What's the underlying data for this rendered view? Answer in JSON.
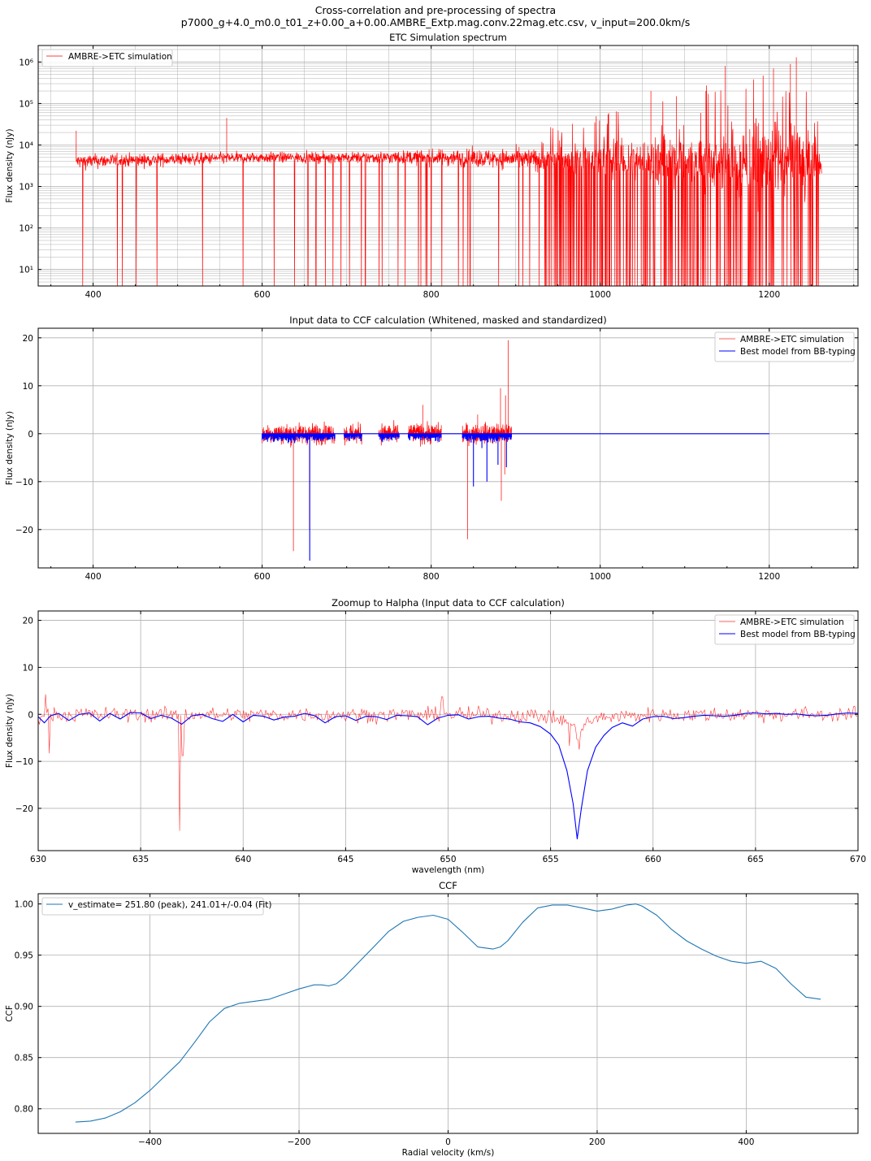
{
  "figure": {
    "title_line1": "Cross-correlation and pre-processing of spectra",
    "title_line2": "p7000_g+4.0_m0.0_t01_z+0.00_a+0.00.AMBRE_Extp.mag.conv.22mag.etc.csv, v_input=200.0km/s"
  },
  "colors": {
    "sim": "#ff0000",
    "model": "#0000ff",
    "ccf": "#1f77b4",
    "grid": "#b0b0b0"
  },
  "chart_data": [
    {
      "id": "p1",
      "type": "line",
      "title": "ETC Simulation spectrum",
      "xlabel": "",
      "ylabel": "Flux density (nJy)",
      "yscale": "log",
      "xlim": [
        335,
        1305
      ],
      "ylim": [
        4,
        2500000
      ],
      "xticks": [
        400,
        600,
        800,
        1000,
        1200
      ],
      "yticks": [
        10,
        100,
        1000,
        10000,
        100000,
        1000000
      ],
      "ytick_labels": [
        "10¹",
        "10²",
        "10³",
        "10⁴",
        "10⁵",
        "10⁶"
      ],
      "grid": "both-major-minor",
      "legend_position": "upper-left",
      "series": [
        {
          "name": "AMBRE->ETC simulation",
          "color": "#ff0000",
          "x_range": [
            380,
            1262
          ],
          "base_level": [
            [
              380,
              4000
            ],
            [
              600,
              5000
            ],
            [
              800,
              5000
            ],
            [
              930,
              4500
            ],
            [
              1100,
              4000
            ],
            [
              1262,
              3500
            ]
          ],
          "max_envelope": [
            [
              380,
              9000
            ],
            [
              700,
              9000
            ],
            [
              930,
              15000
            ],
            [
              1100,
              60000
            ],
            [
              1200,
              300000
            ],
            [
              1262,
              30000
            ]
          ],
          "dense_absorption_region": [
            930,
            1262
          ],
          "peaks": [
            [
              380,
              22000
            ],
            [
              558,
              45000
            ],
            [
              1148,
              800000
            ],
            [
              1232,
              1300000
            ],
            [
              1225,
              900000
            ],
            [
              1205,
              700000
            ],
            [
              1125,
              200000
            ],
            [
              1090,
              150000
            ],
            [
              1060,
              200000
            ]
          ]
        }
      ]
    },
    {
      "id": "p2",
      "type": "line",
      "title": "Input data to CCF calculation (Whitened, masked and standardized)",
      "xlabel": "",
      "ylabel": "Flux density (nJy)",
      "xlim": [
        335,
        1305
      ],
      "ylim": [
        -28,
        22
      ],
      "xticks": [
        400,
        600,
        800,
        1000,
        1200
      ],
      "yticks": [
        -20,
        -10,
        0,
        10,
        20
      ],
      "grid": "major",
      "legend_position": "upper-right",
      "segments": [
        [
          600,
          686
        ],
        [
          697,
          718
        ],
        [
          738,
          762
        ],
        [
          773,
          812
        ],
        [
          837,
          895
        ]
      ],
      "series": [
        {
          "name": "AMBRE->ETC simulation",
          "color": "#ff0000",
          "noise_amplitude": 1.5,
          "spikes": [
            [
              637,
              -24.5
            ],
            [
              656,
              -20
            ],
            [
              843,
              -22
            ],
            [
              883,
              -14
            ],
            [
              887,
              -8.5
            ],
            [
              888,
              8
            ],
            [
              882,
              9.5
            ],
            [
              855,
              4
            ],
            [
              790,
              6
            ],
            [
              891,
              19.5
            ]
          ]
        },
        {
          "name": "Best model from BB-typing",
          "color": "#0000ff",
          "x_extent": [
            600,
            1200
          ],
          "dips": [
            [
              656.3,
              -26.5
            ],
            [
              850,
              -11
            ],
            [
              866,
              -10
            ],
            [
              879,
              -6.5
            ],
            [
              889,
              -7
            ],
            [
              860,
              -3
            ]
          ]
        }
      ]
    },
    {
      "id": "p3",
      "type": "line",
      "title": "Zoomup to Halpha (Input data to CCF calculation)",
      "xlabel": "wavelength (nm)",
      "ylabel": "Flux density (nJy)",
      "xlim": [
        630,
        670
      ],
      "ylim": [
        -29,
        22
      ],
      "xticks": [
        630,
        635,
        640,
        645,
        650,
        655,
        660,
        665,
        670
      ],
      "yticks": [
        -20,
        -10,
        0,
        10,
        20
      ],
      "grid": "major",
      "legend_position": "upper-right",
      "series": [
        {
          "name": "AMBRE->ETC simulation",
          "color": "#ff0000",
          "noise_amplitude": 1.4,
          "spikes": [
            [
              630.55,
              -8.2
            ],
            [
              630.35,
              4.5
            ],
            [
              636.9,
              -24.5
            ],
            [
              637.05,
              -8.5
            ],
            [
              649.7,
              3.8
            ],
            [
              655.9,
              -4.5
            ],
            [
              656.4,
              -4
            ]
          ]
        },
        {
          "name": "Best model from BB-typing",
          "color": "#0000ff",
          "x": [
            630,
            630.3,
            630.6,
            631,
            631.5,
            632,
            632.5,
            633,
            633.5,
            634,
            634.5,
            635,
            635.5,
            636,
            636.5,
            637,
            637.5,
            638,
            638.5,
            639,
            639.5,
            640,
            640.5,
            641,
            641.5,
            642,
            642.5,
            643,
            643.5,
            644,
            644.5,
            645,
            645.5,
            646,
            646.5,
            647,
            647.5,
            648,
            648.5,
            649,
            649.5,
            650,
            650.5,
            651,
            651.5,
            652,
            652.5,
            653,
            653.5,
            654,
            654.5,
            655,
            655.4,
            655.8,
            656.1,
            656.3,
            656.5,
            656.8,
            657.2,
            657.6,
            658,
            658.5,
            659,
            659.5,
            660,
            660.5,
            661,
            661.5,
            662,
            662.5,
            663,
            663.5,
            664,
            664.5,
            665,
            665.5,
            666,
            666.5,
            667,
            667.5,
            668,
            668.5,
            669,
            669.5,
            670
          ],
          "y": [
            -0.5,
            -1.8,
            -0.3,
            0.2,
            -1.3,
            0,
            0.3,
            -1.4,
            0.2,
            -1,
            0.4,
            0.3,
            -0.9,
            -0.2,
            -0.8,
            -2.1,
            -0.3,
            0,
            -0.9,
            -1.5,
            0,
            -1.6,
            -0.2,
            -0.4,
            -1.2,
            -0.6,
            -0.4,
            0.2,
            -0.3,
            -1.8,
            -0.5,
            -0.3,
            -1.3,
            -0.4,
            -0.5,
            -1.1,
            -0.2,
            -0.3,
            -0.5,
            -2.2,
            -0.8,
            -0.2,
            -0.1,
            -1,
            -0.5,
            -0.4,
            -0.8,
            -1,
            -1.6,
            -1.8,
            -2.6,
            -4.2,
            -6.5,
            -12,
            -19,
            -26.5,
            -20,
            -12,
            -7,
            -4.5,
            -2.8,
            -1.8,
            -2.5,
            -1,
            -0.5,
            -0.4,
            -0.9,
            -0.7,
            -0.4,
            -0.2,
            -0.3,
            -0.4,
            -0.2,
            0.2,
            0.3,
            0.1,
            0.2,
            0,
            0.1,
            -0.2,
            -0.3,
            -0.2,
            0.1,
            0.3,
            0.2
          ]
        }
      ]
    },
    {
      "id": "p4",
      "type": "line",
      "title": "CCF",
      "xlabel": "Radial velocity (km/s)",
      "ylabel": "CCF",
      "xlim": [
        -550,
        550
      ],
      "ylim": [
        0.776,
        1.01
      ],
      "xticks": [
        -400,
        -200,
        0,
        200,
        400
      ],
      "yticks": [
        0.8,
        0.85,
        0.9,
        0.95,
        1.0
      ],
      "ytick_labels": [
        "0.80",
        "0.85",
        "0.90",
        "0.95",
        "1.00"
      ],
      "grid": "major",
      "legend_position": "upper-left",
      "series": [
        {
          "name": "v_estimate= 251.80 (peak), 241.01+/-0.04 (Fit)",
          "color": "#1f77b4",
          "x": [
            -500,
            -480,
            -460,
            -440,
            -420,
            -400,
            -380,
            -360,
            -340,
            -320,
            -300,
            -280,
            -260,
            -240,
            -220,
            -200,
            -180,
            -170,
            -160,
            -150,
            -140,
            -120,
            -100,
            -80,
            -60,
            -40,
            -20,
            0,
            20,
            40,
            60,
            70,
            80,
            100,
            120,
            140,
            160,
            180,
            200,
            220,
            240,
            252,
            260,
            280,
            300,
            320,
            340,
            360,
            380,
            400,
            420,
            440,
            460,
            480,
            500
          ],
          "y": [
            0.787,
            0.788,
            0.791,
            0.797,
            0.806,
            0.818,
            0.832,
            0.846,
            0.865,
            0.885,
            0.898,
            0.903,
            0.905,
            0.907,
            0.912,
            0.917,
            0.921,
            0.921,
            0.92,
            0.922,
            0.928,
            0.943,
            0.958,
            0.973,
            0.983,
            0.987,
            0.989,
            0.985,
            0.972,
            0.958,
            0.956,
            0.958,
            0.964,
            0.982,
            0.996,
            0.999,
            0.999,
            0.996,
            0.993,
            0.995,
            0.999,
            1.0,
            0.998,
            0.989,
            0.975,
            0.964,
            0.956,
            0.949,
            0.944,
            0.942,
            0.944,
            0.937,
            0.922,
            0.909,
            0.907
          ]
        }
      ]
    }
  ]
}
